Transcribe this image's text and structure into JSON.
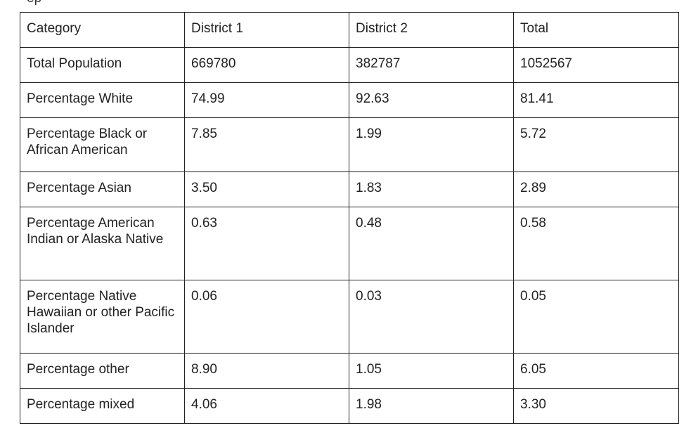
{
  "top_text": "ep",
  "table": {
    "header": [
      "Category",
      "District 1",
      "District 2",
      "Total"
    ],
    "rows": [
      [
        "Total Population",
        "669780",
        "382787",
        "1052567"
      ],
      [
        "Percentage White",
        "74.99",
        "92.63",
        "81.41"
      ],
      [
        "Percentage Black or African American",
        "7.85",
        "1.99",
        "5.72"
      ],
      [
        "Percentage Asian",
        "3.50",
        "1.83",
        "2.89"
      ],
      [
        "Percentage American Indian or Alaska Native",
        "0.63",
        "0.48",
        "0.58"
      ],
      [
        "Percentage Native Hawaiian or other Pacific Islander",
        "0.06",
        "0.03",
        "0.05"
      ],
      [
        "Percentage other",
        "8.90",
        "1.05",
        "6.05"
      ],
      [
        "Percentage mixed",
        "4.06",
        "1.98",
        "3.30"
      ]
    ]
  }
}
